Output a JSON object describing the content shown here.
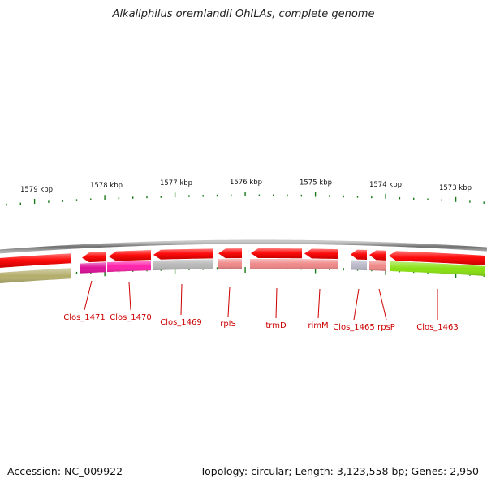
{
  "title": "Alkaliphilus oremlandii OhILAs, complete genome",
  "footer": {
    "accession": "Accession: NC_009922",
    "summary": "Topology: circular; Length: 3,123,558 bp; Genes: 2,950"
  },
  "colors": {
    "backbone": "#8a8a8a",
    "cds_red": "#ff1010",
    "tick": "#1a7a1a",
    "label": "#cc0000"
  },
  "scale": {
    "labels": [
      "1579 kbp",
      "1578 kbp",
      "1577 kbp",
      "1576 kbp",
      "1575 kbp",
      "1574 kbp",
      "1573 kbp"
    ]
  },
  "genes": [
    {
      "name": "Clos_1471",
      "color": "#e0109a"
    },
    {
      "name": "Clos_1470",
      "color": "#ff22aa"
    },
    {
      "name": "Clos_1469",
      "color": "#b8b8b8"
    },
    {
      "name": "rplS",
      "color": "#f08888"
    },
    {
      "name": "trmD",
      "color": "#f08888"
    },
    {
      "name": "rimM",
      "color": "#f08888"
    },
    {
      "name": "Clos_1465",
      "color": "#b8b8c8"
    },
    {
      "name": "rpsP",
      "color": "#f08888"
    },
    {
      "name": "Clos_1463",
      "color": "#88e010"
    }
  ]
}
